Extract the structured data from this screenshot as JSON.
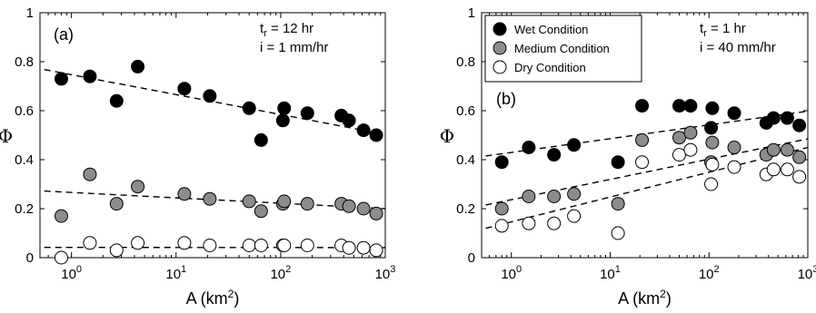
{
  "colors": {
    "wet": "#000000",
    "medium": "#8c8c8c",
    "dry": "#ffffff",
    "marker_edge": "#000000",
    "fit_line": "#000000"
  },
  "chart_data": [
    {
      "type": "scatter",
      "panel_label": "(a)",
      "xlabel": "A (km",
      "xlabel_sup": "2",
      "xlabel_close": ")",
      "ylabel": "Φ",
      "xscale": "log",
      "xlim": [
        0.5,
        1000
      ],
      "ylim": [
        0,
        1
      ],
      "xticks": [
        1,
        10,
        100,
        1000
      ],
      "xtick_labels": [
        {
          "base": "10",
          "exp": "0"
        },
        {
          "base": "10",
          "exp": "1"
        },
        {
          "base": "10",
          "exp": "2"
        },
        {
          "base": "10",
          "exp": "3"
        }
      ],
      "yticks": [
        0,
        0.2,
        0.4,
        0.6,
        0.8,
        1
      ],
      "ytick_labels": [
        "0",
        "0.2",
        "0.4",
        "0.6",
        "0.8",
        "1"
      ],
      "grid": false,
      "legend": null,
      "annotations": [
        {
          "main": "t",
          "sub": "r",
          "rest": " = 12 hr"
        },
        {
          "main": "i = 1 mm/hr"
        }
      ],
      "series": [
        {
          "condition": "wet",
          "points": [
            [
              0.8,
              0.73
            ],
            [
              1.5,
              0.74
            ],
            [
              2.7,
              0.64
            ],
            [
              4.3,
              0.78
            ],
            [
              12,
              0.69
            ],
            [
              21,
              0.66
            ],
            [
              50,
              0.61
            ],
            [
              65,
              0.48
            ],
            [
              105,
              0.56
            ],
            [
              108,
              0.61
            ],
            [
              180,
              0.59
            ],
            [
              380,
              0.58
            ],
            [
              450,
              0.56
            ],
            [
              620,
              0.52
            ],
            [
              820,
              0.5
            ]
          ],
          "fit": [
            [
              0.55,
              0.768
            ],
            [
              1000,
              0.503
            ]
          ]
        },
        {
          "condition": "medium",
          "points": [
            [
              0.8,
              0.17
            ],
            [
              1.5,
              0.34
            ],
            [
              2.7,
              0.22
            ],
            [
              4.3,
              0.29
            ],
            [
              12,
              0.26
            ],
            [
              21,
              0.24
            ],
            [
              50,
              0.23
            ],
            [
              65,
              0.19
            ],
            [
              105,
              0.22
            ],
            [
              108,
              0.23
            ],
            [
              180,
              0.22
            ],
            [
              380,
              0.22
            ],
            [
              450,
              0.21
            ],
            [
              620,
              0.2
            ],
            [
              820,
              0.18
            ]
          ],
          "fit": [
            [
              0.55,
              0.272
            ],
            [
              1000,
              0.2
            ]
          ]
        },
        {
          "condition": "dry",
          "points": [
            [
              0.8,
              0.0
            ],
            [
              1.5,
              0.06
            ],
            [
              2.7,
              0.03
            ],
            [
              4.3,
              0.06
            ],
            [
              12,
              0.06
            ],
            [
              21,
              0.05
            ],
            [
              50,
              0.05
            ],
            [
              65,
              0.05
            ],
            [
              105,
              0.05
            ],
            [
              108,
              0.05
            ],
            [
              180,
              0.05
            ],
            [
              380,
              0.05
            ],
            [
              450,
              0.04
            ],
            [
              620,
              0.04
            ],
            [
              820,
              0.03
            ]
          ],
          "fit": [
            [
              0.55,
              0.042
            ],
            [
              1000,
              0.041
            ]
          ]
        }
      ]
    },
    {
      "type": "scatter",
      "panel_label": "(b)",
      "xlabel": "A (km",
      "xlabel_sup": "2",
      "xlabel_close": ")",
      "ylabel": "Φ",
      "xscale": "log",
      "xlim": [
        0.5,
        1000
      ],
      "ylim": [
        0,
        1
      ],
      "xticks": [
        1,
        10,
        100,
        1000
      ],
      "xtick_labels": [
        {
          "base": "10",
          "exp": "0"
        },
        {
          "base": "10",
          "exp": "1"
        },
        {
          "base": "10",
          "exp": "2"
        },
        {
          "base": "10",
          "exp": "3"
        }
      ],
      "yticks": [
        0,
        0.2,
        0.4,
        0.6,
        0.8,
        1
      ],
      "ytick_labels": [
        "0",
        "0.2",
        "0.4",
        "0.6",
        "0.8",
        "1"
      ],
      "grid": false,
      "legend": {
        "position": "top-left",
        "entries": [
          {
            "label": "Wet Condition",
            "condition": "wet"
          },
          {
            "label": "Medium Condition",
            "condition": "medium"
          },
          {
            "label": "Dry Condition",
            "condition": "dry"
          }
        ]
      },
      "annotations": [
        {
          "main": "t",
          "sub": "r",
          "rest": " = 1 hr"
        },
        {
          "main": "i = 40 mm/hr"
        }
      ],
      "series": [
        {
          "condition": "wet",
          "points": [
            [
              0.8,
              0.39
            ],
            [
              1.5,
              0.45
            ],
            [
              2.7,
              0.42
            ],
            [
              4.3,
              0.46
            ],
            [
              12,
              0.39
            ],
            [
              21,
              0.62
            ],
            [
              50,
              0.62
            ],
            [
              65,
              0.62
            ],
            [
              105,
              0.53
            ],
            [
              108,
              0.61
            ],
            [
              180,
              0.59
            ],
            [
              380,
              0.55
            ],
            [
              450,
              0.57
            ],
            [
              620,
              0.57
            ],
            [
              820,
              0.54
            ]
          ],
          "fit": [
            [
              0.55,
              0.415
            ],
            [
              1000,
              0.598
            ]
          ]
        },
        {
          "condition": "medium",
          "points": [
            [
              0.8,
              0.2
            ],
            [
              1.5,
              0.25
            ],
            [
              2.7,
              0.25
            ],
            [
              4.3,
              0.26
            ],
            [
              12,
              0.22
            ],
            [
              21,
              0.48
            ],
            [
              50,
              0.49
            ],
            [
              65,
              0.51
            ],
            [
              105,
              0.39
            ],
            [
              108,
              0.47
            ],
            [
              180,
              0.45
            ],
            [
              380,
              0.42
            ],
            [
              450,
              0.44
            ],
            [
              620,
              0.44
            ],
            [
              820,
              0.41
            ]
          ],
          "fit": [
            [
              0.55,
              0.215
            ],
            [
              1000,
              0.485
            ]
          ]
        },
        {
          "condition": "dry",
          "points": [
            [
              0.8,
              0.13
            ],
            [
              1.5,
              0.14
            ],
            [
              2.7,
              0.14
            ],
            [
              4.3,
              0.17
            ],
            [
              12,
              0.1
            ],
            [
              21,
              0.39
            ],
            [
              50,
              0.42
            ],
            [
              65,
              0.44
            ],
            [
              105,
              0.3
            ],
            [
              108,
              0.38
            ],
            [
              180,
              0.37
            ],
            [
              380,
              0.34
            ],
            [
              450,
              0.36
            ],
            [
              620,
              0.36
            ],
            [
              820,
              0.33
            ]
          ],
          "fit": [
            [
              0.55,
              0.12
            ],
            [
              1000,
              0.45
            ]
          ]
        }
      ]
    }
  ]
}
